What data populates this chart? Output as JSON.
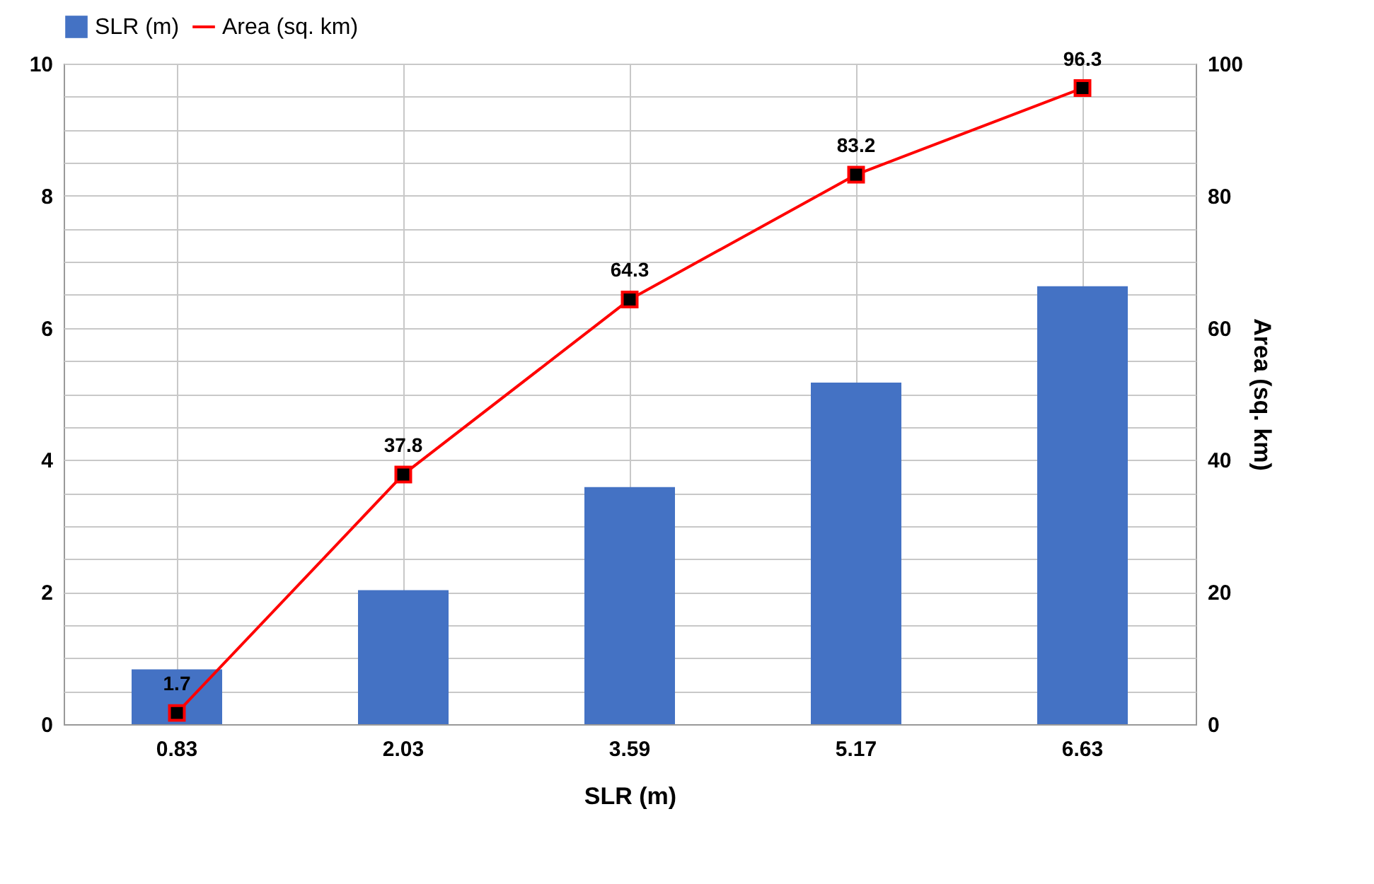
{
  "chart_data": {
    "type": "bar",
    "xlabel": "SLR (m)",
    "y2label": "Area (sq. km)",
    "categories": [
      "0.83",
      "2.03",
      "3.59",
      "5.17",
      "6.63"
    ],
    "series": [
      {
        "name": "SLR (m)",
        "color": "#4472c4",
        "values": [
          0.83,
          2.03,
          3.59,
          5.17,
          6.63
        ]
      },
      {
        "name": "Area (sq. km)",
        "type": "line",
        "axis": "y2",
        "color": "#ff0000",
        "values": [
          1.7,
          37.8,
          64.3,
          83.2,
          96.3
        ],
        "value_labels": [
          "1.7",
          "37.8",
          "64.3",
          "83.2",
          "96.3"
        ]
      }
    ],
    "marker": "square",
    "ylim": [
      0,
      10
    ],
    "yticks": [
      0,
      {
        "value": 0.5,
        "label": null
      },
      {
        "value": 1,
        "label": null
      },
      {
        "value": 1.5,
        "label": null
      },
      2,
      {
        "value": 2.5,
        "label": null
      },
      {
        "value": 3,
        "label": null
      },
      {
        "value": 3.5,
        "label": null
      },
      4,
      {
        "value": 4.5,
        "label": null
      },
      {
        "value": 5,
        "label": null
      },
      {
        "value": 5.5,
        "label": null
      },
      6,
      {
        "value": 6.5,
        "label": null
      },
      {
        "value": 7,
        "label": null
      },
      {
        "value": 7.5,
        "label": null
      },
      8,
      {
        "value": 8.5,
        "label": null
      },
      {
        "value": 9,
        "label": null
      },
      {
        "value": 9.5,
        "label": null
      },
      10
    ],
    "y2lim": [
      0,
      100
    ],
    "y2ticks": [
      0,
      20,
      40,
      60,
      80,
      100
    ],
    "grid": true,
    "legend": "top"
  }
}
